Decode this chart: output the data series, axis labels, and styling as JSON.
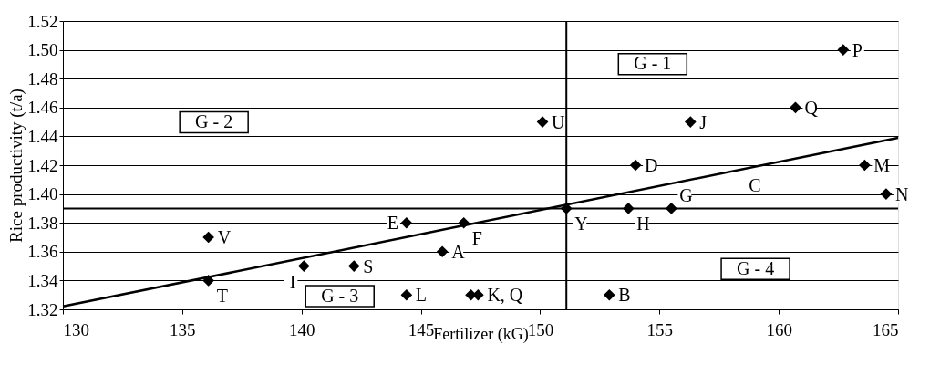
{
  "chart_data": {
    "type": "scatter",
    "xlabel": "Fertilizer (kG)",
    "ylabel": "Rice productivity (t/a)",
    "xlim": [
      130,
      165
    ],
    "xticks": [
      130,
      135,
      140,
      145,
      150,
      155,
      160,
      165
    ],
    "ylim": [
      1.32,
      1.52
    ],
    "yticks": [
      {
        "value": 1.32,
        "label": "1.32"
      },
      {
        "value": 1.34,
        "label": "1.34"
      },
      {
        "value": 1.36,
        "label": "1.36"
      },
      {
        "value": 1.38,
        "label": "1.38"
      },
      {
        "value": 1.4,
        "label": "1.40"
      },
      {
        "value": 1.42,
        "label": "1.42"
      },
      {
        "value": 1.44,
        "label": "1.44"
      },
      {
        "value": 1.46,
        "label": "1.46"
      },
      {
        "value": 1.48,
        "label": "1.48"
      },
      {
        "value": 1.5,
        "label": "1.50"
      },
      {
        "value": 1.52,
        "label": "1.52"
      }
    ],
    "grid": "y",
    "series": [
      {
        "marker": "diamond",
        "color": "#000000",
        "x": [
          162.7,
          160.7,
          156.3,
          154.0,
          163.6,
          164.5,
          153.7,
          155.5,
          152.9,
          150.1,
          151.1,
          144.4,
          146.8,
          145.9,
          140.1,
          142.2,
          144.4,
          147.1,
          147.4,
          136.1,
          136.1
        ],
        "values": [
          1.5,
          1.46,
          1.45,
          1.42,
          1.42,
          1.4,
          1.39,
          1.39,
          1.33,
          1.45,
          1.39,
          1.38,
          1.38,
          1.36,
          1.35,
          1.35,
          1.33,
          1.33,
          1.33,
          1.37,
          1.34
        ]
      },
      {
        "type": "line",
        "color": "#000000",
        "line_style": "solid",
        "x": [
          130,
          165
        ],
        "values": [
          1.322,
          1.439
        ]
      }
    ],
    "ref_lines": [
      {
        "axis": "y",
        "value": 1.39,
        "color": "#000000",
        "line_style": "solid"
      },
      {
        "axis": "x",
        "value": 151.1,
        "color": "#000000",
        "line_style": "solid"
      }
    ],
    "annotations": [
      "G - 1",
      "G - 2",
      "G - 3",
      "G - 4",
      {
        "text": "P",
        "x": 162.7,
        "y": 1.5
      },
      {
        "text": "Q",
        "x": 160.7,
        "y": 1.46
      },
      {
        "text": "J",
        "x": 156.3,
        "y": 1.45
      },
      {
        "text": "D",
        "x": 154.0,
        "y": 1.42
      },
      {
        "text": "M",
        "x": 163.6,
        "y": 1.42
      },
      {
        "text": "N",
        "x": 164.5,
        "y": 1.4
      },
      {
        "text": "C",
        "x": 158.4,
        "y": 1.417
      },
      {
        "text": "H",
        "x": 153.7,
        "y": 1.39
      },
      {
        "text": "G",
        "x": 155.5,
        "y": 1.39
      },
      {
        "text": "B",
        "x": 152.9,
        "y": 1.33
      },
      {
        "text": "U",
        "x": 150.1,
        "y": 1.45
      },
      {
        "text": "Y",
        "x": 151.1,
        "y": 1.39
      },
      {
        "text": "E",
        "x": 144.4,
        "y": 1.38
      },
      {
        "text": "F",
        "x": 146.8,
        "y": 1.38
      },
      {
        "text": "A",
        "x": 145.9,
        "y": 1.36
      },
      {
        "text": "I",
        "x": 140.1,
        "y": 1.35
      },
      {
        "text": "S",
        "x": 142.2,
        "y": 1.35
      },
      {
        "text": "L",
        "x": 144.4,
        "y": 1.33
      },
      {
        "text": "K, Q",
        "x": 147.4,
        "y": 1.33
      },
      {
        "text": "V",
        "x": 136.1,
        "y": 1.37
      },
      {
        "text": "T",
        "x": 136.1,
        "y": 1.34
      }
    ]
  }
}
